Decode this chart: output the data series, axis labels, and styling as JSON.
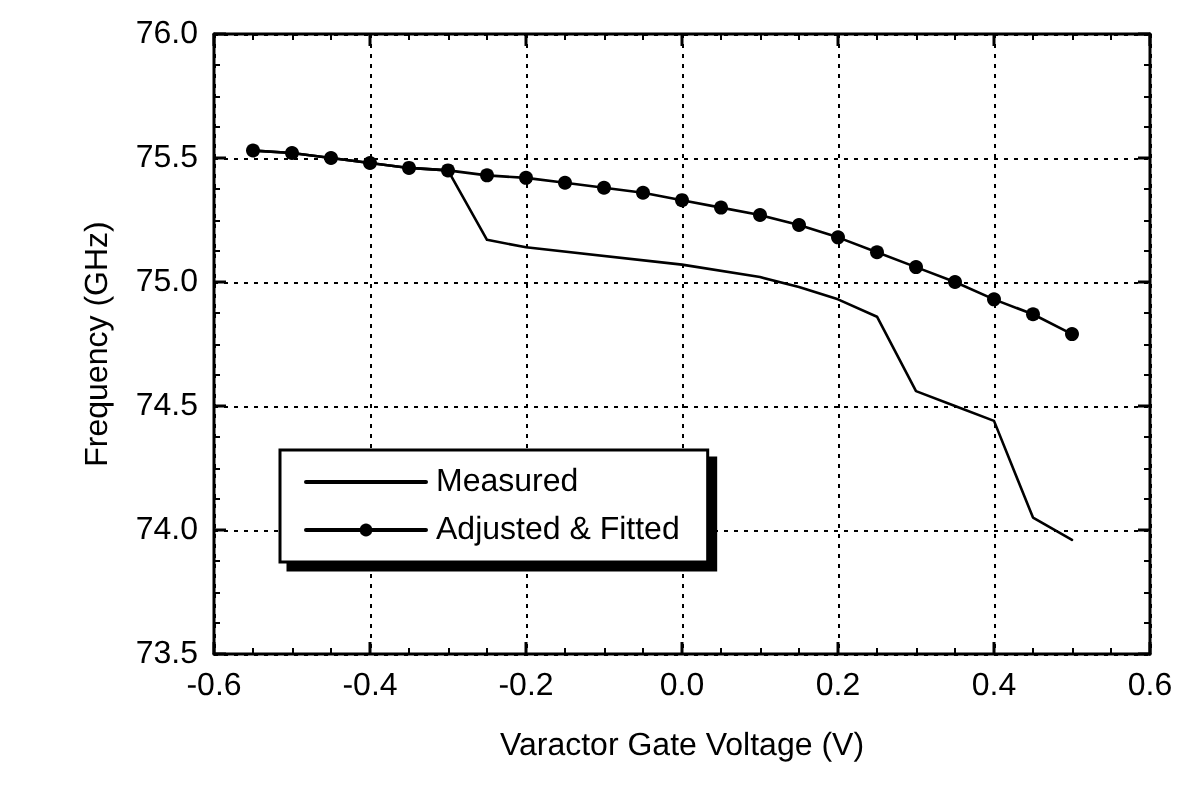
{
  "chart_data": {
    "type": "line",
    "xlabel": "Varactor Gate Voltage (V)",
    "ylabel": "Frequency (GHz)",
    "xlim": [
      -0.6,
      0.6
    ],
    "xticks": [
      -0.6,
      -0.4,
      -0.2,
      {
        "value": 0,
        "label": "0.0"
      },
      0.2,
      0.4,
      0.6
    ],
    "ylim": [
      73.5,
      76.0
    ],
    "yticks": [
      73.5,
      {
        "value": 74,
        "label": "74.0"
      },
      74.5,
      {
        "value": 75,
        "label": "75.0"
      },
      75.5,
      {
        "value": 76,
        "label": "76.0"
      }
    ],
    "grid": true,
    "legend": "bottom left",
    "series": [
      {
        "name": "Measured",
        "color": "#000000",
        "marker": "none",
        "x": [
          -0.55,
          -0.5,
          -0.45,
          -0.4,
          -0.35,
          -0.3,
          -0.25,
          -0.2,
          0.0,
          0.1,
          0.15,
          0.2,
          0.25,
          0.3,
          0.35,
          0.4,
          0.45,
          0.5
        ],
        "values": [
          75.53,
          75.52,
          75.5,
          75.48,
          75.46,
          75.45,
          75.17,
          75.14,
          75.07,
          75.02,
          74.98,
          74.93,
          74.86,
          74.56,
          74.5,
          74.44,
          74.05,
          73.96
        ]
      },
      {
        "name": "Adjusted & Fitted",
        "color": "#000000",
        "marker": "circle",
        "x": [
          -0.55,
          -0.5,
          -0.45,
          -0.4,
          -0.35,
          -0.3,
          -0.25,
          -0.2,
          -0.15,
          -0.1,
          -0.05,
          0.0,
          0.05,
          0.1,
          0.15,
          0.2,
          0.25,
          0.3,
          0.35,
          0.4,
          0.45,
          0.5
        ],
        "values": [
          75.53,
          75.52,
          75.5,
          75.48,
          75.46,
          75.45,
          75.43,
          75.42,
          75.4,
          75.38,
          75.36,
          75.33,
          75.3,
          75.27,
          75.23,
          75.18,
          75.12,
          75.06,
          75.0,
          74.93,
          74.87,
          74.79
        ]
      }
    ]
  }
}
